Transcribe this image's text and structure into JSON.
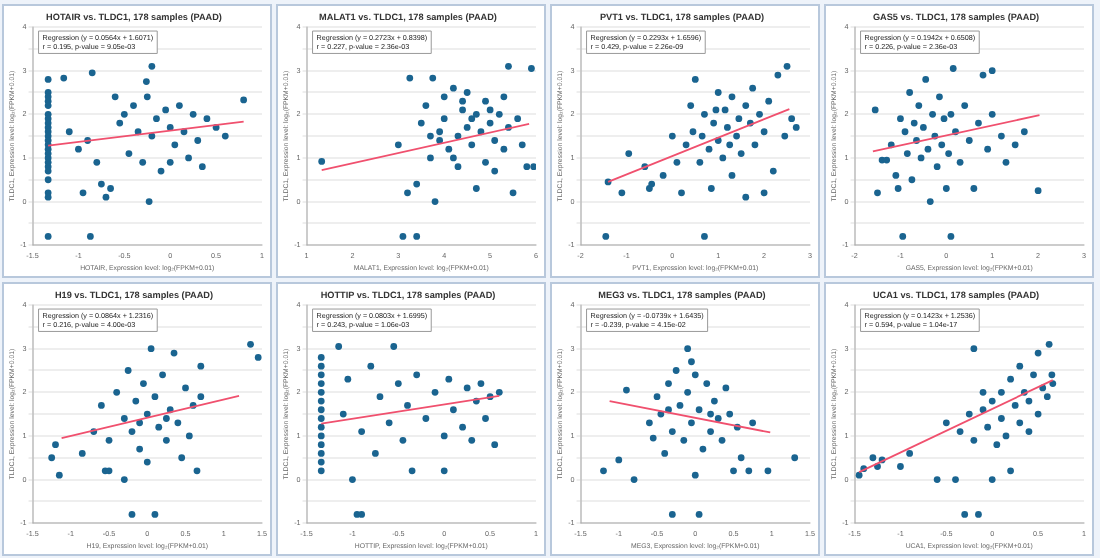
{
  "chart_data": [
    {
      "type": "scatter",
      "title": "HOTAIR vs. TLDC1, 178 samples (PAAD)",
      "xlabel": "HOTAIR, Expression level: log₂(FPKM+0.01)",
      "ylabel": "TLDC1, Expression level: log₂(FPKM+0.01)",
      "annotations": [
        "Regression (y = 0.0564x + 1.6071)",
        "r = 0.195, p-value = 9.05e-03"
      ],
      "xlim": [
        -1.5,
        1
      ],
      "xticks": [
        -1.5,
        -1,
        -0.5,
        0,
        0.5,
        1
      ],
      "ylim": [
        -1,
        4
      ],
      "yticks": [
        -1,
        {
          "value": -0.5,
          "label": null
        },
        0,
        {
          "value": 0.5,
          "label": null
        },
        1,
        {
          "value": 1.5,
          "label": null
        },
        2,
        {
          "value": 2.5,
          "label": null
        },
        3,
        {
          "value": 3.5,
          "label": null
        },
        4
      ],
      "grid": "y",
      "marker": "circle",
      "series": [
        {
          "type": "scatter",
          "color": "#1a6490",
          "x": [
            -1.33,
            -1.33,
            -1.33,
            -1.33,
            -1.33,
            -1.33,
            -1.33,
            -1.33,
            -1.33,
            -1.33,
            -1.33,
            -1.33,
            -1.33,
            -1.33,
            -1.33,
            -1.33,
            -1.33,
            -1.33,
            -1.33,
            -1.33,
            -1.33,
            -1.33,
            -1.33,
            -1.16,
            -0.85,
            -0.2,
            -1.1,
            -1.0,
            -0.9,
            -0.8,
            -0.75,
            -0.7,
            -0.6,
            -0.55,
            -0.5,
            -0.45,
            -0.4,
            -0.35,
            -0.3,
            -0.25,
            -0.26,
            -0.2,
            -0.15,
            -0.1,
            -0.05,
            0.0,
            0.0,
            0.05,
            0.1,
            0.15,
            0.2,
            0.25,
            0.3,
            0.35,
            0.4,
            0.5,
            0.6,
            0.8,
            -0.23,
            -0.87,
            -0.95,
            -0.65
          ],
          "values": [
            2.8,
            2.5,
            2.4,
            2.3,
            2.2,
            2.0,
            1.9,
            1.8,
            1.7,
            1.6,
            1.5,
            1.4,
            1.3,
            1.2,
            1.1,
            1.0,
            0.9,
            0.8,
            0.7,
            0.5,
            0.2,
            0.1,
            -0.8,
            2.83,
            2.95,
            3.1,
            1.6,
            1.2,
            1.4,
            0.9,
            0.4,
            0.1,
            2.4,
            1.8,
            2.0,
            1.1,
            2.2,
            1.6,
            0.9,
            2.4,
            2.75,
            1.5,
            1.9,
            0.7,
            2.1,
            1.7,
            0.9,
            1.3,
            2.2,
            1.6,
            1.0,
            2.0,
            1.4,
            0.8,
            1.9,
            1.7,
            1.5,
            2.33,
            0.0,
            -0.8,
            0.2,
            0.3
          ]
        },
        {
          "type": "line",
          "marker": "none",
          "color": "#f0506e",
          "x": [
            -1.33,
            0.8
          ],
          "values": [
            1.28,
            1.83
          ]
        }
      ]
    },
    {
      "type": "scatter",
      "title": "MALAT1 vs. TLDC1, 178 samples (PAAD)",
      "xlabel": "MALAT1, Expression level: log₂(FPKM+0.01)",
      "ylabel": "TLDC1, Expression level: log₂(FPKM+0.01)",
      "annotations": [
        "Regression (y = 0.2723x + 0.8398)",
        "r = 0.227, p-value = 2.36e-03"
      ],
      "xlim": [
        1,
        6
      ],
      "xticks": [
        1,
        2,
        3,
        4,
        5,
        6
      ],
      "ylim": [
        -1,
        4
      ],
      "yticks": [
        -1,
        {
          "value": -0.5,
          "label": null
        },
        0,
        {
          "value": 0.5,
          "label": null
        },
        1,
        {
          "value": 1.5,
          "label": null
        },
        2,
        {
          "value": 2.5,
          "label": null
        },
        3,
        {
          "value": 3.5,
          "label": null
        },
        4
      ],
      "grid": "y",
      "marker": "circle",
      "series": [
        {
          "type": "scatter",
          "color": "#1a6490",
          "x": [
            1.33,
            3.25,
            3.75,
            3.1,
            3.4,
            3.0,
            3.2,
            3.4,
            3.5,
            3.6,
            3.7,
            3.8,
            3.9,
            4.0,
            4.0,
            4.1,
            4.2,
            4.3,
            4.3,
            4.4,
            4.5,
            4.5,
            4.6,
            4.7,
            4.7,
            4.8,
            4.9,
            4.9,
            5.0,
            5.0,
            5.1,
            5.1,
            5.2,
            5.3,
            5.3,
            5.4,
            5.4,
            5.5,
            5.6,
            5.7,
            5.8,
            5.9,
            5.95,
            3.9,
            4.2,
            4.6,
            4.4,
            3.7
          ],
          "values": [
            0.92,
            2.83,
            2.83,
            -0.8,
            -0.8,
            1.3,
            0.2,
            0.4,
            1.8,
            2.2,
            1.0,
            0.0,
            1.6,
            2.4,
            1.9,
            1.2,
            2.6,
            1.5,
            0.8,
            2.1,
            1.7,
            2.5,
            1.3,
            0.3,
            2.0,
            1.6,
            2.3,
            0.9,
            1.8,
            2.1,
            1.4,
            0.7,
            2.0,
            1.2,
            2.4,
            3.1,
            1.7,
            0.2,
            1.9,
            1.3,
            0.8,
            3.05,
            0.8,
            1.4,
            1.0,
            1.9,
            2.3,
            1.5
          ]
        },
        {
          "type": "line",
          "marker": "none",
          "color": "#f0506e",
          "x": [
            1.33,
            5.85
          ],
          "values": [
            0.72,
            1.78
          ]
        }
      ]
    },
    {
      "type": "scatter",
      "title": "PVT1 vs. TLDC1, 178 samples (PAAD)",
      "xlabel": "PVT1, Expression level: log₂(FPKM+0.01)",
      "ylabel": "TLDC1, Expression level: log₂(FPKM+0.01)",
      "annotations": [
        "Regression (y = 0.2293x + 1.6596)",
        "r = 0.429, p-value = 2.26e-09"
      ],
      "xlim": [
        -2,
        3
      ],
      "xticks": [
        -2,
        -1,
        0,
        1,
        2,
        3
      ],
      "ylim": [
        -1,
        4
      ],
      "yticks": [
        -1,
        {
          "value": -0.5,
          "label": null
        },
        0,
        {
          "value": 0.5,
          "label": null
        },
        1,
        {
          "value": 1.5,
          "label": null
        },
        2,
        {
          "value": 2.5,
          "label": null
        },
        3,
        {
          "value": 3.5,
          "label": null
        },
        4
      ],
      "grid": "y",
      "marker": "circle",
      "series": [
        {
          "type": "scatter",
          "color": "#1a6490",
          "x": [
            -1.4,
            -1.45,
            -1.1,
            -0.95,
            -0.6,
            -0.5,
            -0.45,
            -0.2,
            0,
            0.1,
            0.2,
            0.3,
            0.4,
            0.45,
            0.5,
            0.6,
            0.65,
            0.7,
            0.7,
            0.8,
            0.85,
            0.9,
            1.0,
            1.0,
            1.1,
            1.15,
            1.2,
            1.3,
            1.3,
            1.4,
            1.45,
            1.5,
            1.6,
            1.6,
            1.7,
            1.75,
            1.8,
            1.9,
            2.0,
            2.0,
            2.1,
            2.2,
            2.3,
            2.45,
            2.5,
            2.6,
            2.7,
            1.25,
            0.95
          ],
          "values": [
            0.45,
            -0.8,
            0.2,
            1.1,
            0.8,
            0.3,
            0.4,
            0.6,
            1.5,
            0.9,
            0.2,
            1.3,
            2.2,
            1.6,
            2.8,
            0.9,
            1.5,
            -0.8,
            2.0,
            1.2,
            0.3,
            1.8,
            1.4,
            2.5,
            1.0,
            2.1,
            1.7,
            0.6,
            2.4,
            1.5,
            1.9,
            1.1,
            2.2,
            0.1,
            1.8,
            2.6,
            1.3,
            2.0,
            0.2,
            1.6,
            2.3,
            0.7,
            2.9,
            1.5,
            3.1,
            1.9,
            1.7,
            1.3,
            2.1
          ]
        },
        {
          "type": "line",
          "marker": "none",
          "color": "#f0506e",
          "x": [
            -1.4,
            2.55
          ],
          "values": [
            0.45,
            2.12
          ]
        }
      ]
    },
    {
      "type": "scatter",
      "title": "GAS5 vs. TLDC1, 178 samples (PAAD)",
      "xlabel": "GAS5, Expression level: log₂(FPKM+0.01)",
      "ylabel": "TLDC1, Expression level: log₂(FPKM+0.01)",
      "annotations": [
        "Regression (y = 0.1942x + 0.6508)",
        "r = 0.226, p-value = 2.36e-03"
      ],
      "xlim": [
        -2,
        3
      ],
      "xticks": [
        -2,
        -1,
        0,
        1,
        2,
        3
      ],
      "ylim": [
        -1,
        4
      ],
      "yticks": [
        -1,
        {
          "value": -0.5,
          "label": null
        },
        0,
        {
          "value": 0.5,
          "label": null
        },
        1,
        {
          "value": 1.5,
          "label": null
        },
        2,
        {
          "value": 2.5,
          "label": null
        },
        3,
        {
          "value": 3.5,
          "label": null
        },
        4
      ],
      "grid": "y",
      "marker": "circle",
      "series": [
        {
          "type": "scatter",
          "color": "#1a6490",
          "x": [
            -1.55,
            -1.5,
            -1.4,
            -1.3,
            -1.2,
            -1.1,
            -1.05,
            -0.95,
            -1.0,
            -0.9,
            -0.85,
            -0.8,
            -0.75,
            -0.7,
            -0.65,
            -0.6,
            -0.55,
            -0.5,
            -0.45,
            -0.4,
            -0.35,
            -0.3,
            -0.25,
            -0.2,
            -0.15,
            -0.1,
            -0.05,
            0,
            0.05,
            0.1,
            0.1,
            0.15,
            0.2,
            0.3,
            0.4,
            0.5,
            0.6,
            0.7,
            0.8,
            0.9,
            1.0,
            1.0,
            1.2,
            1.3,
            1.5,
            1.7,
            2.0
          ],
          "values": [
            2.1,
            0.2,
            0.95,
            0.95,
            1.3,
            0.6,
            0.3,
            -0.8,
            1.9,
            1.6,
            1.1,
            2.5,
            0.5,
            1.8,
            1.4,
            2.2,
            1.0,
            1.7,
            2.8,
            1.2,
            0.0,
            2.0,
            1.5,
            0.8,
            2.4,
            1.3,
            1.9,
            0.3,
            1.1,
            -0.8,
            2.0,
            3.05,
            1.6,
            0.9,
            2.2,
            1.4,
            0.3,
            1.8,
            2.9,
            1.2,
            3.0,
            2.0,
            1.5,
            0.9,
            1.3,
            1.6,
            0.25
          ]
        },
        {
          "type": "line",
          "marker": "none",
          "color": "#f0506e",
          "x": [
            -1.6,
            2.03
          ],
          "values": [
            1.15,
            1.98
          ]
        }
      ]
    },
    {
      "type": "scatter",
      "title": "H19 vs. TLDC1, 178 samples (PAAD)",
      "xlabel": "H19, Expression level: log₂(FPKM+0.01)",
      "ylabel": "TLDC1, Expression level: log₂(FPKM+0.01)",
      "annotations": [
        "Regression (y = 0.0864x + 1.2316)",
        "r = 0.216, p-value = 4.00e-03"
      ],
      "xlim": [
        -1.5,
        1.5
      ],
      "xticks": [
        -1.5,
        -1,
        -0.5,
        0,
        0.5,
        1,
        1.5
      ],
      "ylim": [
        -1,
        4
      ],
      "yticks": [
        -1,
        {
          "value": -0.5,
          "label": null
        },
        0,
        {
          "value": 0.5,
          "label": null
        },
        1,
        {
          "value": 1.5,
          "label": null
        },
        2,
        {
          "value": 2.5,
          "label": null
        },
        3,
        {
          "value": 3.5,
          "label": null
        },
        4
      ],
      "grid": "y",
      "marker": "circle",
      "series": [
        {
          "type": "scatter",
          "color": "#1a6490",
          "x": [
            -1.25,
            -1.2,
            -1.15,
            -0.85,
            -0.7,
            -0.6,
            -0.55,
            -0.5,
            -0.5,
            -0.4,
            -0.3,
            -0.3,
            -0.25,
            -0.2,
            -0.2,
            -0.15,
            -0.1,
            -0.05,
            0,
            0,
            0.05,
            0.1,
            0.1,
            0.15,
            0.2,
            0.25,
            0.3,
            0.35,
            0.4,
            0.45,
            0.5,
            0.55,
            0.6,
            0.65,
            0.7,
            0.7,
            1.35,
            1.45,
            0.25,
            -0.1
          ],
          "values": [
            0.5,
            0.8,
            0.1,
            0.6,
            1.1,
            1.7,
            0.2,
            0.2,
            0.9,
            2.0,
            1.4,
            0.0,
            2.5,
            -0.8,
            1.1,
            1.8,
            0.7,
            2.2,
            1.5,
            0.4,
            3.0,
            1.9,
            -0.8,
            1.2,
            2.4,
            0.9,
            1.6,
            2.9,
            1.3,
            0.5,
            2.1,
            1.0,
            1.7,
            0.2,
            1.9,
            2.6,
            3.1,
            2.8,
            1.4,
            1.3
          ]
        },
        {
          "type": "line",
          "marker": "none",
          "color": "#f0506e",
          "x": [
            -1.12,
            1.2
          ],
          "values": [
            0.95,
            1.92
          ]
        }
      ]
    },
    {
      "type": "scatter",
      "title": "HOTTIP vs. TLDC1, 178 samples (PAAD)",
      "xlabel": "HOTTIP, Expression level: log₂(FPKM+0.01)",
      "ylabel": "TLDC1, Expression level: log₂(FPKM+0.01)",
      "annotations": [
        "Regression (y = 0.0803x + 1.6995)",
        "r = 0.243, p-value = 1.06e-03"
      ],
      "xlim": [
        -1.5,
        1
      ],
      "xticks": [
        -1.5,
        -1,
        -0.5,
        0,
        0.5,
        1
      ],
      "ylim": [
        -1,
        4
      ],
      "yticks": [
        -1,
        {
          "value": -0.5,
          "label": null
        },
        0,
        {
          "value": 0.5,
          "label": null
        },
        1,
        {
          "value": 1.5,
          "label": null
        },
        2,
        {
          "value": 2.5,
          "label": null
        },
        3,
        {
          "value": 3.5,
          "label": null
        },
        4
      ],
      "grid": "y",
      "marker": "circle",
      "series": [
        {
          "type": "scatter",
          "color": "#1a6490",
          "x": [
            -1.34,
            -1.34,
            -1.34,
            -1.34,
            -1.34,
            -1.34,
            -1.34,
            -1.34,
            -1.34,
            -1.34,
            -1.34,
            -1.34,
            -1.34,
            -1.34,
            -1.15,
            -1.0,
            -0.95,
            -0.9,
            -1.1,
            -1.05,
            -0.9,
            -0.8,
            -0.75,
            -0.7,
            -0.6,
            -0.55,
            -0.5,
            -0.45,
            -0.4,
            -0.35,
            -0.3,
            -0.2,
            -0.1,
            0,
            0.05,
            0.1,
            0.2,
            0.25,
            0.3,
            0.35,
            0.4,
            0.45,
            0.5,
            0,
            0.55,
            0.6
          ],
          "values": [
            2.8,
            2.6,
            2.4,
            2.2,
            2.0,
            1.8,
            1.6,
            1.4,
            1.2,
            1.0,
            0.8,
            0.6,
            0.4,
            0.2,
            3.05,
            0.0,
            -0.8,
            -0.8,
            1.5,
            2.3,
            1.1,
            2.6,
            0.6,
            1.9,
            1.3,
            3.05,
            2.2,
            0.9,
            1.7,
            0.2,
            2.4,
            1.4,
            2.0,
            1.0,
            2.3,
            1.6,
            1.2,
            2.1,
            0.9,
            1.8,
            2.2,
            1.4,
            1.9,
            0.2,
            0.8,
            2.0
          ]
        },
        {
          "type": "line",
          "marker": "none",
          "color": "#f0506e",
          "x": [
            -1.34,
            0.6
          ],
          "values": [
            1.28,
            1.92
          ]
        }
      ]
    },
    {
      "type": "scatter",
      "title": "MEG3 vs. TLDC1, 178 samples (PAAD)",
      "xlabel": "MEG3, Expression level: log₂(FPKM+0.01)",
      "ylabel": "TLDC1, Expression level: log₂(FPKM+0.01)",
      "annotations": [
        "Regression (y = -0.0739x + 1.6435)",
        "r = -0.239, p-value = 4.15e-02"
      ],
      "xlim": [
        -1.5,
        1.5
      ],
      "xticks": [
        -1.5,
        -1,
        -0.5,
        0,
        0.5,
        1,
        1.5
      ],
      "ylim": [
        -1,
        4
      ],
      "yticks": [
        -1,
        {
          "value": -0.5,
          "label": null
        },
        0,
        {
          "value": 0.5,
          "label": null
        },
        1,
        {
          "value": 1.5,
          "label": null
        },
        2,
        {
          "value": 2.5,
          "label": null
        },
        3,
        {
          "value": 3.5,
          "label": null
        },
        4
      ],
      "grid": "y",
      "marker": "circle",
      "series": [
        {
          "type": "scatter",
          "color": "#1a6490",
          "x": [
            -1.2,
            -1.0,
            -0.9,
            -0.8,
            -0.6,
            -0.55,
            -0.5,
            -0.45,
            -0.4,
            -0.35,
            -0.3,
            -0.3,
            -0.25,
            -0.2,
            -0.15,
            -0.1,
            -0.1,
            -0.05,
            0,
            0,
            0.05,
            0.05,
            0.1,
            0.15,
            0.2,
            0.25,
            0.3,
            0.35,
            0.4,
            0.45,
            0.5,
            0.55,
            0.6,
            0.7,
            0.75,
            0.95,
            1.3,
            -0.05,
            0.2,
            -0.35
          ],
          "values": [
            0.2,
            0.45,
            2.05,
            0.0,
            1.3,
            0.95,
            1.9,
            1.5,
            0.6,
            2.2,
            1.1,
            -0.8,
            2.5,
            1.7,
            0.9,
            3.0,
            2.0,
            1.3,
            2.4,
            0.1,
            1.6,
            -0.8,
            0.7,
            2.2,
            1.1,
            1.8,
            1.4,
            0.9,
            2.1,
            1.5,
            0.2,
            1.2,
            0.5,
            0.2,
            1.3,
            0.2,
            0.5,
            2.7,
            1.5,
            1.6
          ]
        },
        {
          "type": "line",
          "marker": "none",
          "color": "#f0506e",
          "x": [
            -1.12,
            0.98
          ],
          "values": [
            1.8,
            1.08
          ]
        }
      ]
    },
    {
      "type": "scatter",
      "title": "UCA1 vs. TLDC1, 178 samples (PAAD)",
      "xlabel": "UCA1, Expression level: log₂(FPKM+0.01)",
      "ylabel": "TLDC1, Expression level: log₂(FPKM+0.01)",
      "annotations": [
        "Regression (y = 0.1423x + 1.2536)",
        "r = 0.594, p-value = 1.04e-17"
      ],
      "xlim": [
        -1.5,
        1
      ],
      "xticks": [
        -1.5,
        -1,
        -0.5,
        0,
        0.5,
        1
      ],
      "ylim": [
        -1,
        4
      ],
      "yticks": [
        -1,
        {
          "value": -0.5,
          "label": null
        },
        0,
        {
          "value": 0.5,
          "label": null
        },
        1,
        {
          "value": 1.5,
          "label": null
        },
        2,
        {
          "value": 2.5,
          "label": null
        },
        3,
        {
          "value": 3.5,
          "label": null
        },
        4
      ],
      "grid": "y",
      "marker": "circle",
      "series": [
        {
          "type": "scatter",
          "color": "#1a6490",
          "x": [
            -1.45,
            -1.4,
            -1.3,
            -1.25,
            -1.2,
            -1.0,
            -0.9,
            -0.6,
            -0.4,
            -0.35,
            -0.3,
            -0.25,
            -0.2,
            -0.2,
            -0.15,
            -0.1,
            -0.05,
            0,
            0,
            0.05,
            0.1,
            0.1,
            0.15,
            0.2,
            0.2,
            0.25,
            0.3,
            0.3,
            0.35,
            0.4,
            0.4,
            0.45,
            0.5,
            0.5,
            0.55,
            0.6,
            0.62,
            0.65,
            0.66,
            -0.5,
            -0.1
          ],
          "values": [
            0.1,
            0.25,
            0.5,
            0.3,
            0.45,
            0.3,
            0.6,
            0.0,
            0.0,
            1.1,
            -0.8,
            1.5,
            0.9,
            3.0,
            -0.8,
            1.6,
            1.2,
            0.0,
            1.8,
            0.8,
            2.0,
            1.4,
            1.0,
            2.3,
            0.2,
            1.7,
            1.3,
            2.6,
            2.0,
            1.1,
            1.8,
            2.4,
            1.5,
            2.9,
            2.1,
            1.9,
            3.1,
            2.4,
            2.2,
            1.3,
            2.0
          ]
        },
        {
          "type": "line",
          "marker": "none",
          "color": "#f0506e",
          "x": [
            -1.45,
            0.66
          ],
          "values": [
            0.17,
            2.28
          ]
        }
      ]
    }
  ]
}
